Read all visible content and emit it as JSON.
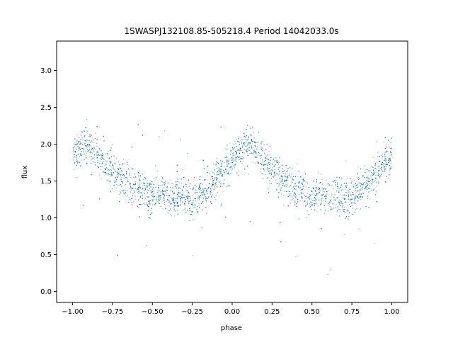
{
  "chart_data": {
    "type": "scatter",
    "title": "1SWASPJ132108.85-505218.4 Period 14042033.0s",
    "xlabel": "phase",
    "ylabel": "flux",
    "xlim": [
      -1.1,
      1.1
    ],
    "ylim": [
      -0.15,
      3.4
    ],
    "x_ticks": [
      -1.0,
      -0.75,
      -0.5,
      -0.25,
      0.0,
      0.25,
      0.5,
      0.75,
      1.0
    ],
    "x_tick_labels": [
      "−1.00",
      "−0.75",
      "−0.50",
      "−0.25",
      "0.00",
      "0.25",
      "0.50",
      "0.75",
      "1.00"
    ],
    "y_ticks": [
      0.0,
      0.5,
      1.0,
      1.5,
      2.0,
      2.5,
      3.0
    ],
    "y_tick_labels": [
      "0.0",
      "0.5",
      "1.0",
      "1.5",
      "2.0",
      "2.5",
      "3.0"
    ],
    "grid": false,
    "marker_color": "#1f77b4",
    "series": [
      {
        "x": [
          -1.0,
          -0.98,
          -0.96,
          -0.94,
          -0.92,
          -0.9,
          -0.88,
          -0.86,
          -0.84,
          -0.82,
          -0.8,
          -0.78,
          -0.76,
          -0.74,
          -0.72,
          -0.7,
          -0.68,
          -0.66,
          -0.64,
          -0.62,
          -0.6,
          -0.58,
          -0.56,
          -0.54,
          -0.52,
          -0.5,
          -0.48,
          -0.46,
          -0.44,
          -0.42,
          -0.4,
          -0.38,
          -0.36,
          -0.34,
          -0.32,
          -0.3,
          -0.28,
          -0.26,
          -0.24,
          -0.22,
          -0.2,
          -0.18,
          -0.16,
          -0.14,
          -0.12,
          -0.1,
          -0.08,
          -0.06,
          -0.04,
          -0.02,
          0.0,
          0.02,
          0.04,
          0.06,
          0.08,
          0.1,
          0.12,
          0.14,
          0.16,
          0.18,
          0.2,
          0.22,
          0.24,
          0.26,
          0.28,
          0.3,
          0.32,
          0.34,
          0.36,
          0.38,
          0.4,
          0.42,
          0.44,
          0.46,
          0.48,
          0.5,
          0.52,
          0.54,
          0.56,
          0.58,
          0.6,
          0.62,
          0.64,
          0.66,
          0.68,
          0.7,
          0.72,
          0.74,
          0.76,
          0.78,
          0.8,
          0.82,
          0.84,
          0.86,
          0.88,
          0.9,
          0.92,
          0.94,
          0.96,
          0.98,
          1.0
        ],
        "y": [
          1.85,
          1.9,
          1.95,
          2.0,
          2.02,
          1.98,
          1.95,
          1.88,
          1.82,
          1.78,
          1.75,
          1.72,
          1.68,
          1.62,
          1.58,
          1.55,
          1.52,
          1.48,
          1.45,
          1.45,
          1.42,
          1.4,
          1.38,
          1.35,
          1.32,
          1.3,
          1.3,
          1.32,
          1.35,
          1.33,
          1.3,
          1.28,
          1.3,
          1.32,
          1.35,
          1.3,
          1.25,
          1.22,
          1.25,
          1.3,
          1.35,
          1.4,
          1.42,
          1.4,
          1.48,
          1.55,
          1.6,
          1.65,
          1.7,
          1.72,
          1.75,
          1.8,
          1.88,
          1.95,
          2.0,
          2.02,
          1.98,
          1.95,
          1.88,
          1.82,
          1.78,
          1.75,
          1.7,
          1.65,
          1.6,
          1.55,
          1.52,
          1.5,
          1.45,
          1.42,
          1.4,
          1.38,
          1.35,
          1.32,
          1.3,
          1.3,
          1.32,
          1.35,
          1.33,
          1.3,
          1.28,
          1.3,
          1.32,
          1.35,
          1.3,
          1.25,
          1.22,
          1.25,
          1.3,
          1.35,
          1.4,
          1.42,
          1.45,
          1.5,
          1.55,
          1.6,
          1.65,
          1.7,
          1.75,
          1.8,
          1.85
        ],
        "spread": 0.22
      }
    ]
  }
}
